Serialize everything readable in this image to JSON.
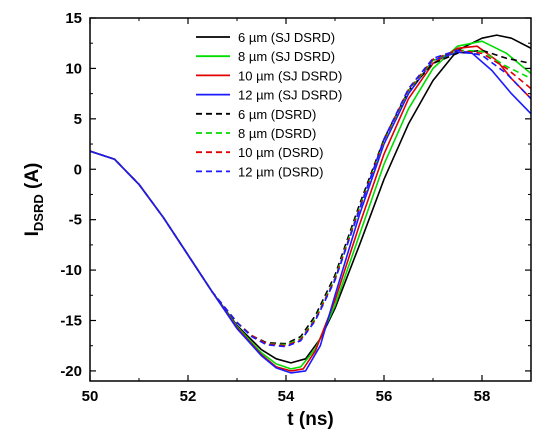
{
  "chart_data": {
    "type": "line",
    "title": "",
    "xlabel": "t (ns)",
    "ylabel_main": "I",
    "ylabel_sub": "DSRD",
    "ylabel_suffix": " (A)",
    "xlim": [
      50,
      59
    ],
    "ylim": [
      -21,
      15
    ],
    "xticks": [
      50,
      52,
      54,
      56,
      58
    ],
    "yticks": [
      -20,
      -15,
      -10,
      -5,
      0,
      5,
      10,
      15
    ],
    "grid": false,
    "legend_position": "top-center",
    "series": [
      {
        "name": "6 µm (SJ DSRD)",
        "color": "#000000",
        "dash": "solid",
        "x": [
          50,
          50.5,
          51,
          51.5,
          52,
          52.5,
          53,
          53.5,
          53.8,
          54.1,
          54.4,
          54.7,
          55,
          55.5,
          56,
          56.5,
          57,
          57.5,
          58,
          58.3,
          58.6,
          59
        ],
        "y": [
          1.8,
          1.0,
          -1.5,
          -4.8,
          -8.5,
          -12.2,
          -15.5,
          -17.9,
          -18.8,
          -19.2,
          -18.8,
          -16.8,
          -13.8,
          -7.5,
          -1.0,
          4.5,
          8.8,
          11.8,
          13.0,
          13.3,
          13.0,
          12.0
        ]
      },
      {
        "name": "8 µm (SJ DSRD)",
        "color": "#00dd00",
        "dash": "solid",
        "x": [
          50,
          50.5,
          51,
          51.5,
          52,
          52.5,
          53,
          53.5,
          53.8,
          54.1,
          54.3,
          54.6,
          55,
          55.5,
          56,
          56.5,
          57,
          57.5,
          58,
          58.5,
          59
        ],
        "y": [
          1.8,
          1.0,
          -1.5,
          -4.8,
          -8.5,
          -12.2,
          -15.6,
          -18.2,
          -19.3,
          -19.8,
          -19.6,
          -17.8,
          -13.5,
          -6.5,
          0.5,
          6.0,
          10.0,
          12.2,
          12.7,
          11.5,
          9.5
        ]
      },
      {
        "name": "10 µm (SJ DSRD)",
        "color": "#e00000",
        "dash": "solid",
        "x": [
          50,
          50.5,
          51,
          51.5,
          52,
          52.5,
          53,
          53.5,
          53.8,
          54.1,
          54.35,
          54.6,
          55,
          55.5,
          56,
          56.5,
          57,
          57.5,
          57.9,
          58.3,
          58.6,
          59
        ],
        "y": [
          1.8,
          1.0,
          -1.5,
          -4.8,
          -8.5,
          -12.2,
          -15.7,
          -18.4,
          -19.6,
          -20.0,
          -19.8,
          -18.0,
          -13.0,
          -5.5,
          1.5,
          7.0,
          10.5,
          12.0,
          12.2,
          10.8,
          9.0,
          7.0
        ]
      },
      {
        "name": "12 µm (SJ DSRD)",
        "color": "#1a1aff",
        "dash": "solid",
        "x": [
          50,
          50.5,
          51,
          51.5,
          52,
          52.5,
          53,
          53.5,
          53.8,
          54.1,
          54.4,
          54.7,
          55,
          55.5,
          56,
          56.5,
          57,
          57.5,
          57.8,
          58.2,
          58.6,
          59
        ],
        "y": [
          1.8,
          1.0,
          -1.5,
          -4.8,
          -8.5,
          -12.2,
          -15.8,
          -18.5,
          -19.7,
          -20.2,
          -20.0,
          -17.5,
          -12.5,
          -4.5,
          2.5,
          7.5,
          10.8,
          11.6,
          11.5,
          9.8,
          7.5,
          5.5
        ]
      },
      {
        "name": "6 µm (DSRD)",
        "color": "#000000",
        "dash": "dashed",
        "x": [
          50,
          50.5,
          51,
          51.5,
          52,
          52.5,
          53,
          53.3,
          53.6,
          54,
          54.3,
          54.6,
          55,
          55.5,
          56,
          56.5,
          57,
          57.5,
          58,
          58.5,
          59
        ],
        "y": [
          1.8,
          1.0,
          -1.5,
          -4.8,
          -8.5,
          -12.2,
          -15.2,
          -16.5,
          -17.2,
          -17.3,
          -16.6,
          -14.5,
          -10.5,
          -3.5,
          3.0,
          7.8,
          10.5,
          11.5,
          11.8,
          11.0,
          10.5
        ]
      },
      {
        "name": "8 µm (DSRD)",
        "color": "#00dd00",
        "dash": "dashed",
        "x": [
          50,
          50.5,
          51,
          51.5,
          52,
          52.5,
          53,
          53.3,
          53.6,
          54,
          54.3,
          54.6,
          55,
          55.5,
          56,
          56.5,
          57,
          57.5,
          58,
          58.5,
          59
        ],
        "y": [
          1.8,
          1.0,
          -1.5,
          -4.8,
          -8.5,
          -12.2,
          -15.2,
          -16.5,
          -17.3,
          -17.4,
          -16.8,
          -14.8,
          -10.8,
          -3.8,
          2.8,
          7.8,
          10.8,
          11.8,
          11.7,
          10.2,
          9.0
        ]
      },
      {
        "name": "10 µm (DSRD)",
        "color": "#e00000",
        "dash": "dashed",
        "x": [
          50,
          50.5,
          51,
          51.5,
          52,
          52.5,
          53,
          53.3,
          53.6,
          54,
          54.3,
          54.6,
          55,
          55.5,
          56,
          56.5,
          57,
          57.5,
          58,
          58.5,
          59
        ],
        "y": [
          1.8,
          1.0,
          -1.5,
          -4.8,
          -8.5,
          -12.2,
          -15.2,
          -16.5,
          -17.3,
          -17.5,
          -16.9,
          -14.9,
          -10.9,
          -3.9,
          2.9,
          7.9,
          10.9,
          11.8,
          11.5,
          10.0,
          8.0
        ]
      },
      {
        "name": "12 µm (DSRD)",
        "color": "#1a1aff",
        "dash": "dashed",
        "x": [
          50,
          50.5,
          51,
          51.5,
          52,
          52.5,
          53,
          53.3,
          53.6,
          54,
          54.3,
          54.6,
          55,
          55.5,
          56,
          56.5,
          57,
          57.5,
          58,
          58.5,
          59
        ],
        "y": [
          1.8,
          1.0,
          -1.5,
          -4.8,
          -8.5,
          -12.2,
          -15.2,
          -16.6,
          -17.4,
          -17.6,
          -17.0,
          -15.0,
          -11.0,
          -4.0,
          3.0,
          8.0,
          11.0,
          11.8,
          11.3,
          9.5,
          7.0
        ]
      }
    ]
  }
}
